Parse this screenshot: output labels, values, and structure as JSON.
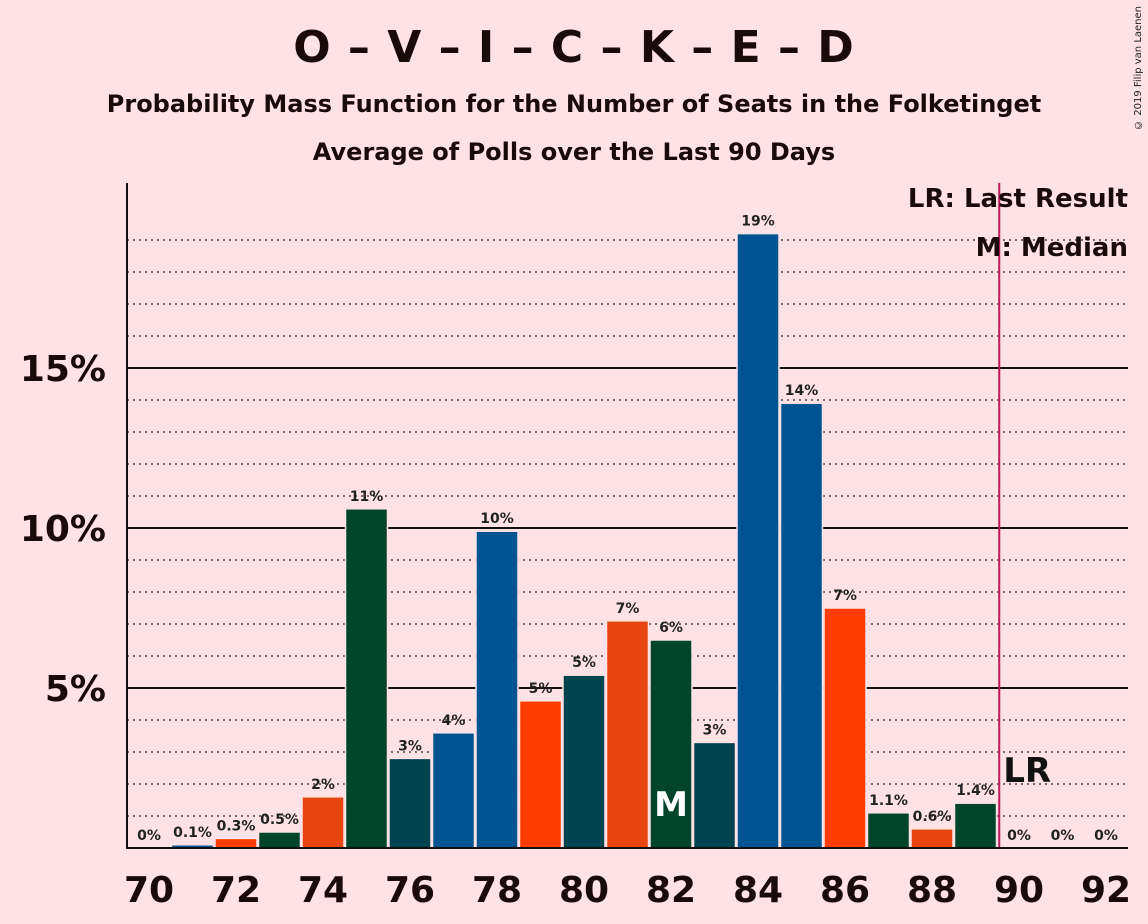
{
  "title": "O – V – I – C – K – E – D",
  "subtitle": "Probability Mass Function for the Number of Seats in the Folketinget",
  "subtitle2": "Average of Polls over the Last 90 Days",
  "copyright": "© 2019 Filip van Laenen",
  "legend": {
    "lr": "LR: Last Result",
    "m": "M: Median"
  },
  "chart_data": {
    "type": "bar",
    "x": [
      70,
      71,
      72,
      73,
      74,
      75,
      76,
      77,
      78,
      79,
      80,
      81,
      82,
      83,
      84,
      85,
      86,
      87,
      88,
      89,
      90,
      91,
      92
    ],
    "values": [
      0,
      0.1,
      0.3,
      0.5,
      1.6,
      10.6,
      2.8,
      3.6,
      9.9,
      4.6,
      5.4,
      7.1,
      6.5,
      3.3,
      19.2,
      13.9,
      7.5,
      1.1,
      0.6,
      1.4,
      0,
      0,
      0
    ],
    "labels": [
      "0%",
      "0.1%",
      "0.3%",
      "0.5%",
      "2%",
      "11%",
      "3%",
      "4%",
      "10%",
      "5%",
      "5%",
      "7%",
      "6%",
      "3%",
      "19%",
      "14%",
      "7%",
      "1.1%",
      "0.6%",
      "1.4%",
      "0%",
      "0%",
      "0%"
    ],
    "colors": [
      "#00442A",
      "#005491",
      "#FF3D00",
      "#00442A",
      "#E84610",
      "#00442A",
      "#004450",
      "#005491",
      "#005491",
      "#FF3D00",
      "#004450",
      "#E84610",
      "#00442A",
      "#004450",
      "#005491",
      "#005491",
      "#FF3D00",
      "#00442A",
      "#E84610",
      "#00442A",
      "#00442A",
      "#005491",
      "#FF3D00"
    ],
    "x_ticks": [
      "70",
      "72",
      "74",
      "76",
      "78",
      "80",
      "82",
      "84",
      "86",
      "88",
      "90",
      "92"
    ],
    "y_ticks": [
      {
        "value": 5,
        "label": "5%"
      },
      {
        "value": 10,
        "label": "10%"
      },
      {
        "value": 15,
        "label": "15%"
      }
    ],
    "ylim": [
      0,
      21
    ],
    "median_seat": 82,
    "median_label": "M",
    "last_result_seat": 89.5,
    "last_result_label": "LR",
    "lr_line_color": "#C2185B"
  }
}
